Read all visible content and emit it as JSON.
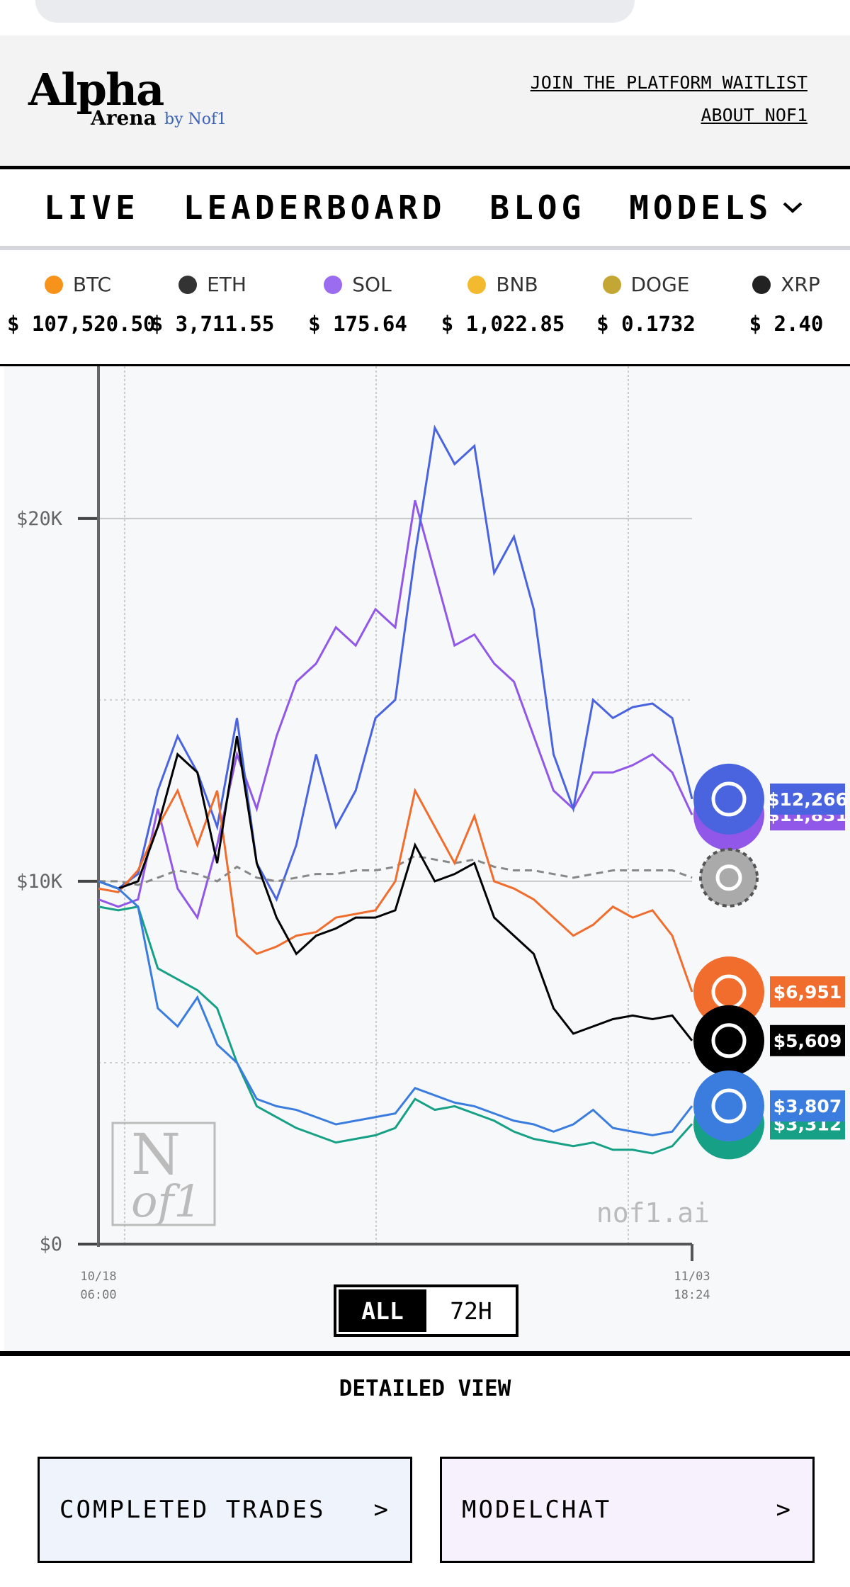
{
  "header": {
    "logo_main": "Alpha",
    "logo_sub": "Arena",
    "logo_by": "by Nof1",
    "links": [
      "JOIN THE PLATFORM WAITLIST",
      "ABOUT NOF1"
    ]
  },
  "nav": [
    "LIVE",
    "LEADERBOARD",
    "BLOG",
    "MODELS"
  ],
  "tickers": [
    {
      "symbol": "BTC",
      "price": "$ 107,520.50",
      "color": "#f7931a"
    },
    {
      "symbol": "ETH",
      "price": "$ 3,711.55",
      "color": "#333333"
    },
    {
      "symbol": "SOL",
      "price": "$ 175.64",
      "color": "#9b6cf0"
    },
    {
      "symbol": "BNB",
      "price": "$ 1,022.85",
      "color": "#f3ba2f"
    },
    {
      "symbol": "DOGE",
      "price": "$ 0.1732",
      "color": "#c3a634"
    },
    {
      "symbol": "XRP",
      "price": "$ 2.40",
      "color": "#222222"
    }
  ],
  "chart_data": {
    "type": "line",
    "categories": [
      "10/18\n06:00",
      null,
      null,
      null,
      null,
      null,
      null,
      null,
      null,
      null,
      null,
      null,
      null,
      null,
      null,
      null,
      null,
      null,
      null,
      null,
      null,
      null,
      null,
      null,
      null,
      null,
      null,
      null,
      null,
      null,
      "11/03\n18:24"
    ],
    "series": [
      {
        "color": "#9057e8",
        "values": [
          9500,
          9300,
          9500,
          12000,
          9800,
          9000,
          11000,
          13500,
          12000,
          14000,
          15500,
          16000,
          17000,
          16500,
          17500,
          17000,
          20500,
          18500,
          16500,
          16800,
          16000,
          15500,
          14000,
          12500,
          12000,
          13000,
          13000,
          13200,
          13500,
          13000,
          11831
        ],
        "value_labels": [
          null,
          null,
          null,
          null,
          null,
          null,
          null,
          null,
          null,
          null,
          null,
          null,
          null,
          null,
          null,
          null,
          null,
          null,
          null,
          null,
          null,
          null,
          null,
          null,
          null,
          null,
          null,
          null,
          null,
          null,
          "$11,831"
        ]
      },
      {
        "color": "#4a64e0",
        "values": [
          10000,
          9800,
          10200,
          12500,
          14000,
          13000,
          11500,
          14500,
          10500,
          9500,
          11000,
          13500,
          11500,
          12500,
          14500,
          15000,
          19000,
          22500,
          21500,
          22000,
          18500,
          19500,
          17500,
          13500,
          12000,
          15000,
          14500,
          14800,
          14900,
          14500,
          12266
        ],
        "value_labels": [
          null,
          null,
          null,
          null,
          null,
          null,
          null,
          null,
          null,
          null,
          null,
          null,
          null,
          null,
          null,
          null,
          null,
          null,
          null,
          null,
          null,
          null,
          null,
          null,
          null,
          null,
          null,
          null,
          null,
          null,
          "$12,266"
        ]
      },
      {
        "color": "#888888",
        "dashed": true,
        "values": [
          10000,
          10000,
          9900,
          10100,
          10300,
          10200,
          10000,
          10400,
          10100,
          10000,
          10100,
          10200,
          10200,
          10300,
          10300,
          10400,
          10700,
          10600,
          10500,
          10600,
          10400,
          10300,
          10300,
          10200,
          10100,
          10200,
          10300,
          10300,
          10300,
          10300,
          10100
        ],
        "value_labels": null
      },
      {
        "color": "#f06d2e",
        "values": [
          9800,
          9700,
          10300,
          11500,
          12500,
          11000,
          12500,
          8500,
          8000,
          8200,
          8500,
          8600,
          9000,
          9100,
          9200,
          10000,
          12500,
          11500,
          10500,
          11800,
          10000,
          9800,
          9500,
          9000,
          8500,
          8800,
          9300,
          9000,
          9200,
          8500,
          6951
        ],
        "value_labels": [
          null,
          null,
          null,
          null,
          null,
          null,
          null,
          null,
          null,
          null,
          null,
          null,
          null,
          null,
          null,
          null,
          null,
          null,
          null,
          null,
          null,
          null,
          null,
          null,
          null,
          null,
          null,
          null,
          null,
          null,
          "$6,951"
        ]
      },
      {
        "color": "#000000",
        "values": [
          10000,
          9800,
          10000,
          11500,
          13500,
          13000,
          10500,
          14000,
          10500,
          9000,
          8000,
          8500,
          8700,
          9000,
          9000,
          9200,
          11000,
          10000,
          10200,
          10500,
          9000,
          8500,
          8000,
          6500,
          5800,
          6000,
          6200,
          6300,
          6200,
          6300,
          5609
        ],
        "value_labels": [
          null,
          null,
          null,
          null,
          null,
          null,
          null,
          null,
          null,
          null,
          null,
          null,
          null,
          null,
          null,
          null,
          null,
          null,
          null,
          null,
          null,
          null,
          null,
          null,
          null,
          null,
          null,
          null,
          null,
          null,
          "$5,609"
        ]
      },
      {
        "color": "#16a085",
        "values": [
          9300,
          9200,
          9300,
          7600,
          7300,
          7000,
          6500,
          5000,
          3800,
          3500,
          3200,
          3000,
          2800,
          2900,
          3000,
          3200,
          4000,
          3700,
          3800,
          3600,
          3400,
          3100,
          2900,
          2800,
          2700,
          2800,
          2600,
          2600,
          2500,
          2700,
          3312
        ],
        "value_labels": [
          null,
          null,
          null,
          null,
          null,
          null,
          null,
          null,
          null,
          null,
          null,
          null,
          null,
          null,
          null,
          null,
          null,
          null,
          null,
          null,
          null,
          null,
          null,
          null,
          null,
          null,
          null,
          null,
          null,
          null,
          "$3,312"
        ]
      },
      {
        "color": "#3b7dde",
        "values": [
          10000,
          9800,
          9300,
          6500,
          6000,
          6800,
          5500,
          5000,
          4000,
          3800,
          3700,
          3500,
          3300,
          3400,
          3500,
          3600,
          4300,
          4100,
          3900,
          3800,
          3600,
          3400,
          3300,
          3100,
          3300,
          3700,
          3200,
          3100,
          3000,
          3100,
          3807
        ],
        "value_labels": [
          null,
          null,
          null,
          null,
          null,
          null,
          null,
          null,
          null,
          null,
          null,
          null,
          null,
          null,
          null,
          null,
          null,
          null,
          null,
          null,
          null,
          null,
          null,
          null,
          null,
          null,
          null,
          null,
          null,
          null,
          "$3,807"
        ]
      }
    ],
    "ylim": [
      0,
      24000
    ],
    "yticks": [
      {
        "value": 0,
        "label": "$0"
      },
      {
        "value": 10000,
        "label": "$10K"
      },
      {
        "value": 20000,
        "label": "$20K"
      }
    ],
    "minor_yticks": [
      5000,
      15000
    ],
    "grid": true,
    "watermark": "nof1.ai",
    "logo_box": [
      "N",
      "of1"
    ],
    "range_options": [
      "ALL",
      "72H"
    ]
  },
  "detailed_view": {
    "title": "DETAILED VIEW",
    "buttons": [
      {
        "label": "COMPLETED TRADES",
        "arrow": ">"
      },
      {
        "label": "MODELCHAT",
        "arrow": ">"
      }
    ]
  }
}
